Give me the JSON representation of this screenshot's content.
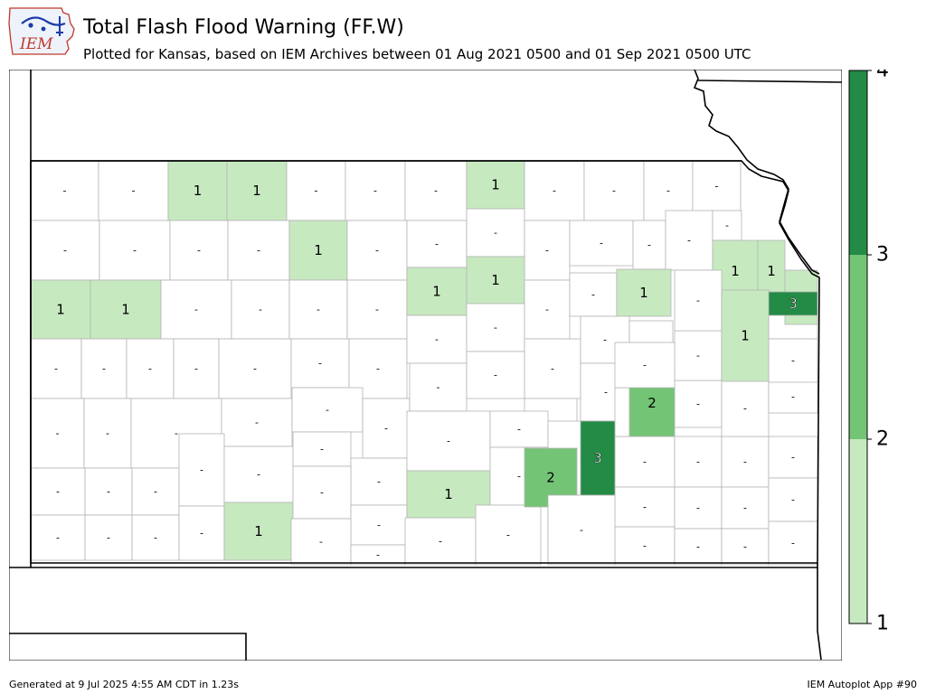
{
  "header": {
    "logo_text": "IEM",
    "title": "Total Flash Flood Warning (FF.W)",
    "subtitle": "Plotted for Kansas, based on IEM Archives  between 01 Aug 2021 0500 and 01 Sep 2021 0500 UTC"
  },
  "legend": {
    "ticks": [
      "1",
      "2",
      "3",
      "4"
    ],
    "colors": [
      "#c7e9c0",
      "#74c476",
      "#238b45"
    ]
  },
  "colors": {
    "zero": "#ffffff",
    "one": "#c7e9c0",
    "two": "#74c476",
    "three": "#238b45",
    "county_border": "#b4b4b4",
    "state_border": "#000000"
  },
  "map_data": {
    "state": "Kansas",
    "counties": [
      {
        "label": "-",
        "value": 0
      },
      {
        "label": "-",
        "value": 0
      },
      {
        "label": "1",
        "value": 1
      },
      {
        "label": "1",
        "value": 1
      },
      {
        "label": "-",
        "value": 0
      },
      {
        "label": "-",
        "value": 0
      },
      {
        "label": "-",
        "value": 0
      },
      {
        "label": "1",
        "value": 1
      },
      {
        "label": "-",
        "value": 0
      },
      {
        "label": "-",
        "value": 0
      },
      {
        "label": "-",
        "value": 0
      },
      {
        "label": "-",
        "value": 0
      },
      {
        "label": "-",
        "value": 0
      },
      {
        "label": "-",
        "value": 0
      },
      {
        "label": "-",
        "value": 0
      },
      {
        "label": "-",
        "value": 0
      },
      {
        "label": "1",
        "value": 1
      },
      {
        "label": "-",
        "value": 0
      },
      {
        "label": "-",
        "value": 0
      },
      {
        "label": "-",
        "value": 0
      },
      {
        "label": "-",
        "value": 0
      },
      {
        "label": "-",
        "value": 0
      },
      {
        "label": "-",
        "value": 0
      },
      {
        "label": "-",
        "value": 0
      },
      {
        "label": "-",
        "value": 0
      },
      {
        "label": "1",
        "value": 1
      },
      {
        "label": "1",
        "value": 1
      },
      {
        "label": "-",
        "value": 0
      },
      {
        "label": "-",
        "value": 0
      },
      {
        "label": "-",
        "value": 0
      },
      {
        "label": "-",
        "value": 0
      },
      {
        "label": "1",
        "value": 1
      },
      {
        "label": "1",
        "value": 1
      },
      {
        "label": "-",
        "value": 0
      },
      {
        "label": "-",
        "value": 0
      },
      {
        "label": "1",
        "value": 1
      },
      {
        "label": "-",
        "value": 0
      },
      {
        "label": "-",
        "value": 0
      },
      {
        "label": "-",
        "value": 0
      },
      {
        "label": "-",
        "value": 0
      },
      {
        "label": "-",
        "value": 0
      },
      {
        "label": "-",
        "value": 0
      },
      {
        "label": "-",
        "value": 0
      },
      {
        "label": "-",
        "value": 0
      },
      {
        "label": "-",
        "value": 0
      },
      {
        "label": "-",
        "value": 0
      },
      {
        "label": "-",
        "value": 0
      },
      {
        "label": "-",
        "value": 0
      },
      {
        "label": "-",
        "value": 0
      },
      {
        "label": "-",
        "value": 0
      },
      {
        "label": "-",
        "value": 0
      },
      {
        "label": "-",
        "value": 0
      },
      {
        "label": "-",
        "value": 0
      },
      {
        "label": "-",
        "value": 0
      },
      {
        "label": "-",
        "value": 0
      },
      {
        "label": "-",
        "value": 0
      },
      {
        "label": "-",
        "value": 0
      },
      {
        "label": "-",
        "value": 0
      },
      {
        "label": "-",
        "value": 0
      },
      {
        "label": "-",
        "value": 0
      },
      {
        "label": "-",
        "value": 0
      },
      {
        "label": "-",
        "value": 0
      },
      {
        "label": "-",
        "value": 0
      },
      {
        "label": "-",
        "value": 0
      },
      {
        "label": "-",
        "value": 0
      },
      {
        "label": "-",
        "value": 0
      },
      {
        "label": "-",
        "value": 0
      },
      {
        "label": "-",
        "value": 0
      },
      {
        "label": "-",
        "value": 0
      },
      {
        "label": "-",
        "value": 0
      },
      {
        "label": "-",
        "value": 0
      },
      {
        "label": "-",
        "value": 0
      },
      {
        "label": "1",
        "value": 1
      },
      {
        "label": "-",
        "value": 0
      },
      {
        "label": "-",
        "value": 0
      },
      {
        "label": "1",
        "value": 1
      },
      {
        "label": "-",
        "value": 0
      },
      {
        "label": "-",
        "value": 0
      },
      {
        "label": "-",
        "value": 0
      },
      {
        "label": "-",
        "value": 0
      },
      {
        "label": "-",
        "value": 0
      },
      {
        "label": "-",
        "value": 0
      },
      {
        "label": "-",
        "value": 0
      },
      {
        "label": "-",
        "value": 0
      },
      {
        "label": "-",
        "value": 0
      },
      {
        "label": "-",
        "value": 0
      },
      {
        "label": "-",
        "value": 0
      },
      {
        "label": "-",
        "value": 0
      },
      {
        "label": "-",
        "value": 0
      },
      {
        "label": "-",
        "value": 0
      },
      {
        "label": "-",
        "value": 0
      },
      {
        "label": "-",
        "value": 0
      },
      {
        "label": "-",
        "value": 0
      },
      {
        "label": "-",
        "value": 0
      },
      {
        "label": "-",
        "value": 0
      },
      {
        "label": "-",
        "value": 0
      },
      {
        "label": "-",
        "value": 0
      },
      {
        "label": "-",
        "value": 0
      },
      {
        "label": "-",
        "value": 0
      },
      {
        "label": "-",
        "value": 0
      },
      {
        "label": "-",
        "value": 0
      },
      {
        "label": "-",
        "value": 0
      },
      {
        "label": "-",
        "value": 0
      },
      {
        "label": "-",
        "value": 0
      },
      {
        "label": "-",
        "value": 0
      },
      {
        "label": "-",
        "value": 0
      },
      {
        "label": "-",
        "value": 0
      },
      {
        "label": "-",
        "value": 0
      },
      {
        "label": "1",
        "value": 1
      },
      {
        "label": "1",
        "value": 1
      },
      {
        "label": "-",
        "value": 0
      },
      {
        "label": "1",
        "value": 1
      },
      {
        "label": "1",
        "value": 1
      },
      {
        "label": "3",
        "value": 3
      },
      {
        "label": "2",
        "value": 2
      },
      {
        "label": "1",
        "value": 1
      },
      {
        "label": "2",
        "value": 2
      },
      {
        "label": "3",
        "value": 3
      },
      {
        "label": "-",
        "value": 0
      },
      {
        "label": "-",
        "value": 0
      },
      {
        "label": "-",
        "value": 0
      },
      {
        "label": "-",
        "value": 0
      }
    ]
  },
  "footer": {
    "left": "Generated at 9 Jul 2025 4:55 AM CDT in 1.23s",
    "right": "IEM Autoplot App #90"
  }
}
